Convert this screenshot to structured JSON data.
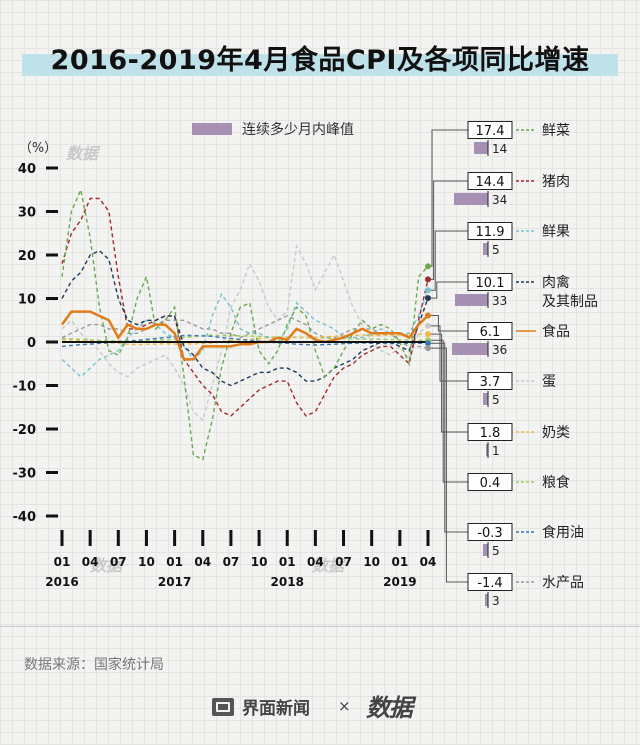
{
  "title": "2016-2019年4月食品CPI及各项同比增速",
  "source": "数据来源：国家统计局",
  "footer": {
    "logo_text": "界面新闻",
    "x": "×",
    "brand": "数据"
  },
  "watermark": "数据",
  "colors": {
    "title_bar": "#bfe2ea",
    "peak_bar": "#a691b5"
  },
  "chart_data": {
    "type": "line",
    "ylabel": "（%）",
    "ylim": [
      -45,
      40
    ],
    "yticks": [
      40,
      30,
      20,
      10,
      0,
      -10,
      -20,
      -30,
      -40
    ],
    "x": [
      "2016-01",
      "2016-02",
      "2016-03",
      "2016-04",
      "2016-05",
      "2016-06",
      "2016-07",
      "2016-08",
      "2016-09",
      "2016-10",
      "2016-11",
      "2016-12",
      "2017-01",
      "2017-02",
      "2017-03",
      "2017-04",
      "2017-05",
      "2017-06",
      "2017-07",
      "2017-08",
      "2017-09",
      "2017-10",
      "2017-11",
      "2017-12",
      "2018-01",
      "2018-02",
      "2018-03",
      "2018-04",
      "2018-05",
      "2018-06",
      "2018-07",
      "2018-08",
      "2018-09",
      "2018-10",
      "2018-11",
      "2018-12",
      "2019-01",
      "2019-02",
      "2019-03",
      "2019-04"
    ],
    "xtick_labels": [
      "01",
      "04",
      "07",
      "10",
      "01",
      "04",
      "07",
      "10",
      "01",
      "04",
      "07",
      "10",
      "01",
      "04"
    ],
    "xtick_years": [
      "2016",
      "2017",
      "2018",
      "2019"
    ],
    "legend_title": "连续多少月内峰值",
    "series": [
      {
        "name": "鲜菜",
        "color": "#6aa84f",
        "dash": "4,3",
        "latest": "17.4",
        "peak": 14,
        "values": [
          15,
          30,
          35,
          24,
          8,
          -2,
          -3,
          1,
          10,
          15,
          3,
          5,
          8,
          -8,
          -26,
          -27,
          -18,
          -6,
          2,
          8,
          9,
          -2,
          -5,
          -2,
          4,
          8,
          6,
          -2,
          -8,
          -6,
          -2,
          2,
          5,
          3,
          4,
          3,
          0,
          -5,
          15,
          17.4
        ]
      },
      {
        "name": "猪肉",
        "color": "#a12a2a",
        "dash": "4,3",
        "latest": "14.4",
        "peak": 34,
        "values": [
          18,
          25,
          28,
          33,
          33,
          30,
          15,
          3,
          3,
          4,
          5,
          6,
          6,
          -4,
          -7,
          -10,
          -12,
          -16,
          -17,
          -15,
          -13,
          -11,
          -10,
          -9,
          -9,
          -14,
          -17,
          -16,
          -12,
          -8,
          -6,
          -5,
          -3,
          -2,
          -1,
          -1,
          -3,
          -5,
          5,
          14.4
        ]
      },
      {
        "name": "鲜果",
        "color": "#79c2d0",
        "dash": "4,3",
        "latest": "11.9",
        "peak": 5,
        "values": [
          -4,
          -6,
          -8,
          -6,
          -4,
          -3,
          -2,
          1,
          3,
          5,
          4,
          2,
          1,
          -1,
          -4,
          -2,
          6,
          11,
          8,
          3,
          2,
          2,
          1,
          0,
          3,
          9,
          7,
          5,
          4,
          3,
          1,
          1,
          1,
          2,
          3,
          2,
          2,
          2,
          6,
          11.9
        ]
      },
      {
        "name": "肉禽及其制品",
        "color": "#1f3a5a",
        "dash": "4,3",
        "latest": "10.1",
        "peak": 33,
        "values": [
          10,
          14,
          16,
          20,
          21,
          19,
          10,
          5,
          4,
          5,
          5,
          6,
          6,
          -1,
          -3,
          -6,
          -7,
          -9,
          -10,
          -9,
          -8,
          -7,
          -7,
          -6,
          -6,
          -7,
          -9,
          -9,
          -8,
          -6,
          -5,
          -4,
          -2,
          -1,
          0,
          0,
          -1,
          -2,
          4,
          10.1
        ]
      },
      {
        "name": "食品",
        "color": "#e07c1a",
        "dash": "",
        "latest": "6.1",
        "peak": 36,
        "values": [
          4,
          7,
          7,
          7,
          6,
          5,
          1,
          4,
          3,
          3,
          4,
          4,
          2,
          -4,
          -4,
          -1,
          -1,
          -1,
          -1,
          -0.5,
          -0.5,
          0,
          0,
          1,
          0.5,
          3,
          2,
          0.5,
          0,
          0.5,
          1,
          2,
          3,
          2,
          2,
          2,
          2,
          1,
          4,
          6.1
        ]
      },
      {
        "name": "蛋",
        "color": "#c8c8c8",
        "dash": "4,3",
        "latest": "3.7",
        "peak": 5,
        "values": [
          3,
          5,
          2,
          0,
          -2,
          -5,
          -7,
          -8,
          -6,
          -5,
          -4,
          -3,
          -6,
          -10,
          -16,
          -18,
          -10,
          -2,
          8,
          12,
          18,
          14,
          8,
          5,
          7,
          22,
          18,
          12,
          16,
          20,
          14,
          8,
          4,
          0,
          -2,
          -3,
          -1,
          -4,
          2,
          3.7
        ]
      },
      {
        "name": "奶类",
        "color": "#f0b64a",
        "dash": "4,3",
        "latest": "1.8",
        "peak": 1,
        "values": [
          0.5,
          0.5,
          0.3,
          0.2,
          0,
          0,
          -0.3,
          -0.5,
          -0.6,
          -0.5,
          -0.5,
          -0.4,
          -0.5,
          -0.4,
          -0.5,
          -0.3,
          -0.2,
          0,
          0.3,
          0.5,
          0.6,
          0.8,
          1,
          1,
          1,
          1,
          1,
          1,
          1.2,
          1.3,
          1.5,
          1.5,
          1.6,
          1.5,
          1.5,
          1.6,
          1.6,
          1.7,
          1.8,
          1.8
        ]
      },
      {
        "name": "粮食",
        "color": "#9ccc65",
        "dash": "4,3",
        "latest": "0.4",
        "peak": null,
        "values": [
          0.8,
          0.7,
          0.6,
          0.5,
          0.4,
          0.3,
          0.3,
          0.2,
          0.2,
          0.3,
          0.4,
          0.5,
          0.6,
          1,
          1.2,
          1.5,
          1.6,
          1.5,
          1.5,
          1.4,
          1.4,
          1.3,
          1.2,
          1.1,
          1.1,
          1.1,
          1,
          1,
          0.9,
          0.8,
          0.8,
          0.7,
          0.7,
          0.7,
          0.6,
          0.6,
          0.5,
          0.5,
          0.4,
          0.4
        ]
      },
      {
        "name": "食用油",
        "color": "#3b78b0",
        "dash": "4,3",
        "latest": "-0.3",
        "peak": 5,
        "values": [
          -1,
          -0.8,
          -0.6,
          -0.5,
          -0.3,
          -0.2,
          0,
          0.2,
          0.4,
          0.6,
          0.8,
          1,
          1.2,
          1.5,
          1.5,
          1.4,
          1.3,
          1,
          0.8,
          0.6,
          0.4,
          0.2,
          0,
          -0.2,
          -0.3,
          -0.5,
          -0.6,
          -0.7,
          -0.6,
          -0.5,
          -0.4,
          -0.3,
          -0.2,
          -0.3,
          -0.3,
          -0.4,
          -0.3,
          -0.3,
          -0.3,
          -0.3
        ]
      },
      {
        "name": "水产品",
        "color": "#9a9a9a",
        "dash": "4,3",
        "latest": "-1.4",
        "peak": 3,
        "values": [
          1,
          2,
          3,
          4,
          4,
          3,
          3,
          2,
          2,
          3,
          4,
          5,
          5,
          5,
          4,
          3,
          3,
          2,
          2,
          1,
          2,
          3,
          4,
          5,
          6,
          5,
          4,
          2,
          1,
          1,
          2,
          3,
          3,
          3,
          2,
          2,
          0,
          -1,
          -1,
          -1.4
        ]
      }
    ]
  }
}
